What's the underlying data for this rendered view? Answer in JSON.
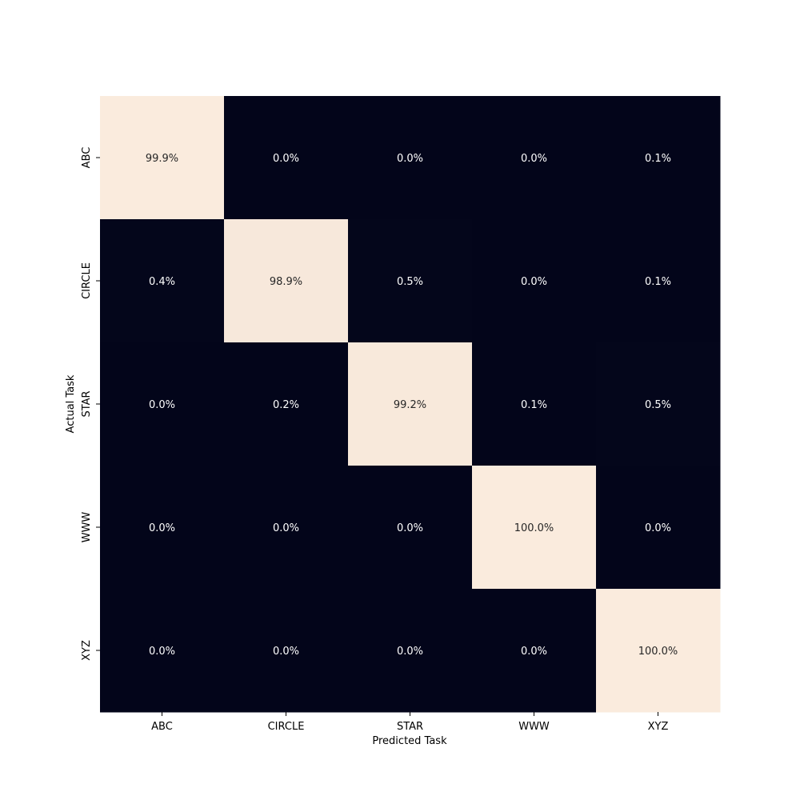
{
  "chart_data": {
    "type": "heatmap",
    "title": "",
    "xlabel": "Predicted Task",
    "ylabel": "Actual Task",
    "x_categories": [
      "ABC",
      "CIRCLE",
      "STAR",
      "WWW",
      "XYZ"
    ],
    "y_categories": [
      "ABC",
      "CIRCLE",
      "STAR",
      "WWW",
      "XYZ"
    ],
    "values": [
      [
        99.9,
        0.0,
        0.0,
        0.0,
        0.1
      ],
      [
        0.4,
        98.9,
        0.5,
        0.0,
        0.1
      ],
      [
        0.0,
        0.2,
        99.2,
        0.1,
        0.5
      ],
      [
        0.0,
        0.0,
        0.0,
        100.0,
        0.0
      ],
      [
        0.0,
        0.0,
        0.0,
        0.0,
        100.0
      ]
    ],
    "labels": [
      [
        "99.9%",
        "0.0%",
        "0.0%",
        "0.0%",
        "0.1%"
      ],
      [
        "0.4%",
        "98.9%",
        "0.5%",
        "0.0%",
        "0.1%"
      ],
      [
        "0.0%",
        "0.2%",
        "99.2%",
        "0.1%",
        "0.5%"
      ],
      [
        "0.0%",
        "0.0%",
        "0.0%",
        "100.0%",
        "0.0%"
      ],
      [
        "0.0%",
        "0.0%",
        "0.0%",
        "0.0%",
        "100.0%"
      ]
    ],
    "value_range": [
      0,
      100
    ],
    "colors": {
      "low": "#03051a",
      "high": "#faebdd",
      "text_on_dark": "#ffffff",
      "text_on_light": "#262626"
    },
    "grid": false,
    "legend": "none"
  }
}
